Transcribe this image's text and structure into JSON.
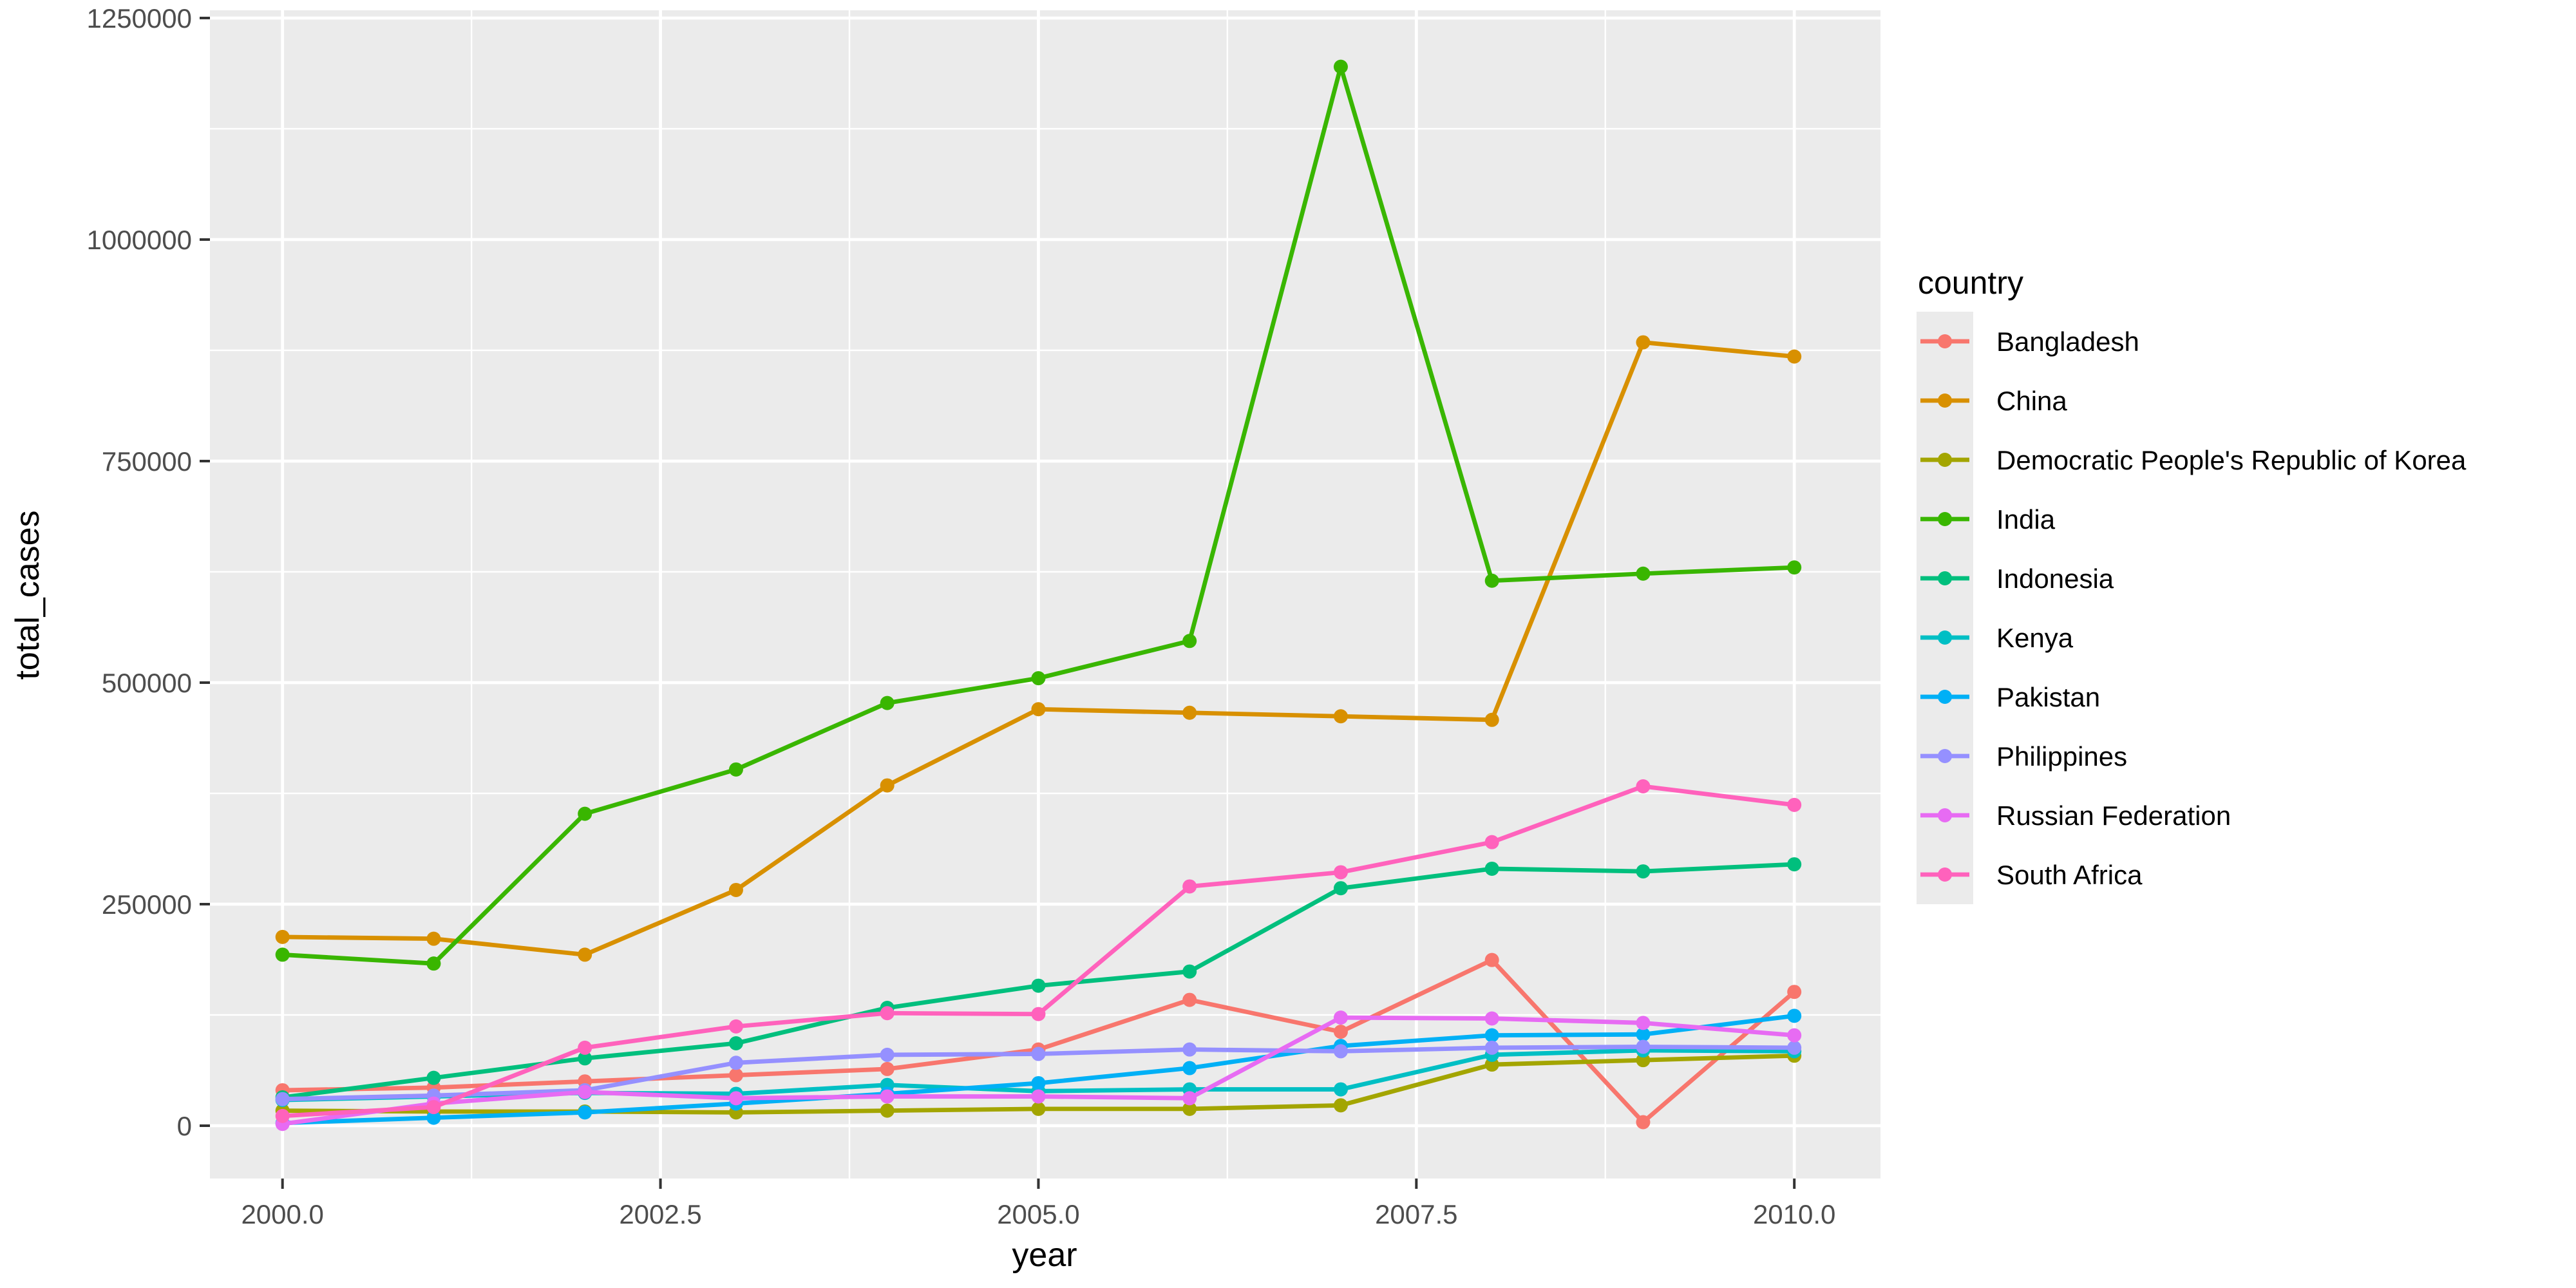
{
  "chart_data": {
    "type": "line",
    "title": "",
    "xlabel": "year",
    "ylabel": "total_cases",
    "legend_title": "country",
    "legend_position": "right",
    "grid": "on",
    "panel_background": "#EBEBEB",
    "gridline_color": "#FFFFFF",
    "tick_color": "#333333",
    "tick_label_color": "#4D4D4D",
    "xlim": [
      1999.52,
      2010.57
    ],
    "ylim": [
      -59600,
      1258700
    ],
    "x_major_ticks": [
      2000.0,
      2002.5,
      2005.0,
      2007.5,
      2010.0
    ],
    "x_tick_labels": [
      "2000.0",
      "2002.5",
      "2005.0",
      "2007.5",
      "2010.0"
    ],
    "x_minor_ticks": [
      2001.25,
      2003.75,
      2006.25,
      2008.75
    ],
    "y_major_ticks": [
      0,
      250000,
      500000,
      750000,
      1000000,
      1250000
    ],
    "y_tick_labels": [
      "0",
      "250000",
      "500000",
      "750000",
      "1000000",
      "1250000"
    ],
    "y_minor_ticks": [
      125000,
      375000,
      625000,
      875000,
      1125000
    ],
    "x": [
      2000,
      2001,
      2002,
      2003,
      2004,
      2005,
      2006,
      2007,
      2008,
      2009,
      2010
    ],
    "series": [
      {
        "name": "Bangladesh",
        "color": "#F8766D",
        "values": [
          40000,
          43000,
          50000,
          57000,
          64000,
          86000,
          142000,
          106000,
          187000,
          4000,
          151000
        ]
      },
      {
        "name": "China",
        "color": "#D89000",
        "values": [
          213000,
          211000,
          193000,
          266000,
          384000,
          470000,
          466000,
          462000,
          458000,
          884000,
          868000
        ]
      },
      {
        "name": "Democratic People's Republic of Korea",
        "color": "#A3A500",
        "values": [
          17000,
          16000,
          16000,
          15000,
          17000,
          19000,
          19000,
          23000,
          69000,
          74000,
          79000
        ]
      },
      {
        "name": "India",
        "color": "#39B600",
        "values": [
          193000,
          183000,
          352000,
          402000,
          477000,
          505000,
          547000,
          1195000,
          615000,
          623000,
          630000
        ]
      },
      {
        "name": "Indonesia",
        "color": "#00BF7D",
        "values": [
          32000,
          54000,
          76000,
          93000,
          133000,
          158000,
          174000,
          268000,
          290000,
          287000,
          295000
        ]
      },
      {
        "name": "Kenya",
        "color": "#00BFC4",
        "values": [
          29000,
          33000,
          37000,
          36000,
          46000,
          39000,
          41000,
          41000,
          80000,
          85000,
          84000
        ]
      },
      {
        "name": "Pakistan",
        "color": "#00B0F6",
        "values": [
          3000,
          9000,
          15000,
          25000,
          36000,
          48000,
          65000,
          90000,
          102000,
          103000,
          124000
        ]
      },
      {
        "name": "Philippines",
        "color": "#9590FF",
        "values": [
          30000,
          34000,
          40000,
          71000,
          80000,
          81000,
          86000,
          84000,
          88000,
          89000,
          88000
        ]
      },
      {
        "name": "Russian Federation",
        "color": "#E76BF3",
        "values": [
          2000,
          25000,
          38000,
          31000,
          33000,
          33000,
          31000,
          122000,
          121000,
          116000,
          102000
        ]
      },
      {
        "name": "South Africa",
        "color": "#FF62BC",
        "values": [
          11000,
          21000,
          88000,
          112000,
          127000,
          126000,
          270000,
          286000,
          320000,
          383000,
          362000
        ]
      }
    ]
  }
}
